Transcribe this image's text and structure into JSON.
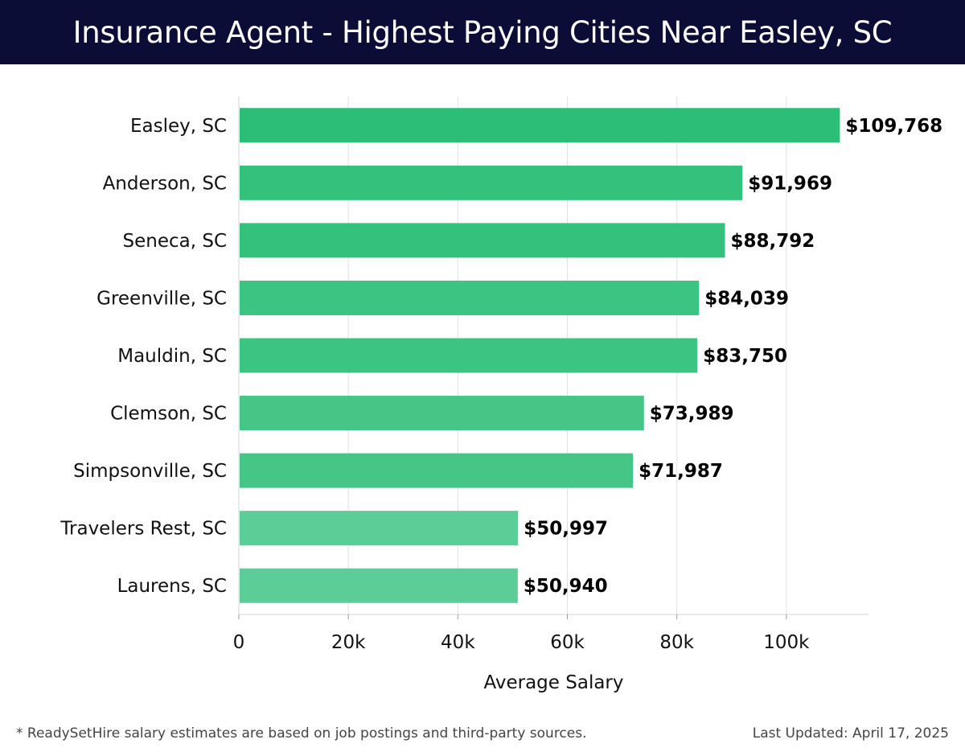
{
  "header": {
    "title": "Insurance Agent - Highest Paying Cities Near Easley, SC"
  },
  "chart_data": {
    "type": "bar",
    "orientation": "horizontal",
    "title": "Insurance Agent - Highest Paying Cities Near Easley, SC",
    "xlabel": "Average Salary",
    "ylabel": "",
    "xlim": [
      0,
      115000
    ],
    "x_ticks": [
      0,
      20000,
      40000,
      60000,
      80000,
      100000
    ],
    "x_tick_labels": [
      "0",
      "20k",
      "40k",
      "60k",
      "80k",
      "100k"
    ],
    "grid": true,
    "categories": [
      "Easley, SC",
      "Anderson, SC",
      "Seneca, SC",
      "Greenville, SC",
      "Mauldin, SC",
      "Clemson, SC",
      "Simpsonville, SC",
      "Travelers Rest, SC",
      "Laurens, SC"
    ],
    "values": [
      109768,
      91969,
      88792,
      84039,
      83750,
      73989,
      71987,
      50997,
      50940
    ],
    "value_labels": [
      "$109,768",
      "$91,969",
      "$88,792",
      "$84,039",
      "$83,750",
      "$73,989",
      "$71,987",
      "$50,997",
      "$50,940"
    ],
    "bar_colors": [
      "#2cbe77",
      "#33c17b",
      "#34c17b",
      "#3cc482",
      "#3cc482",
      "#45c687",
      "#45c687",
      "#5ccd96",
      "#5ccd96"
    ]
  },
  "footer": {
    "note": "* ReadySetHire salary estimates are based on job postings and third-party sources.",
    "updated": "Last Updated: April 17, 2025"
  },
  "colors": {
    "header_bg": "#0c0d36",
    "grid": "#e0e0e0"
  }
}
